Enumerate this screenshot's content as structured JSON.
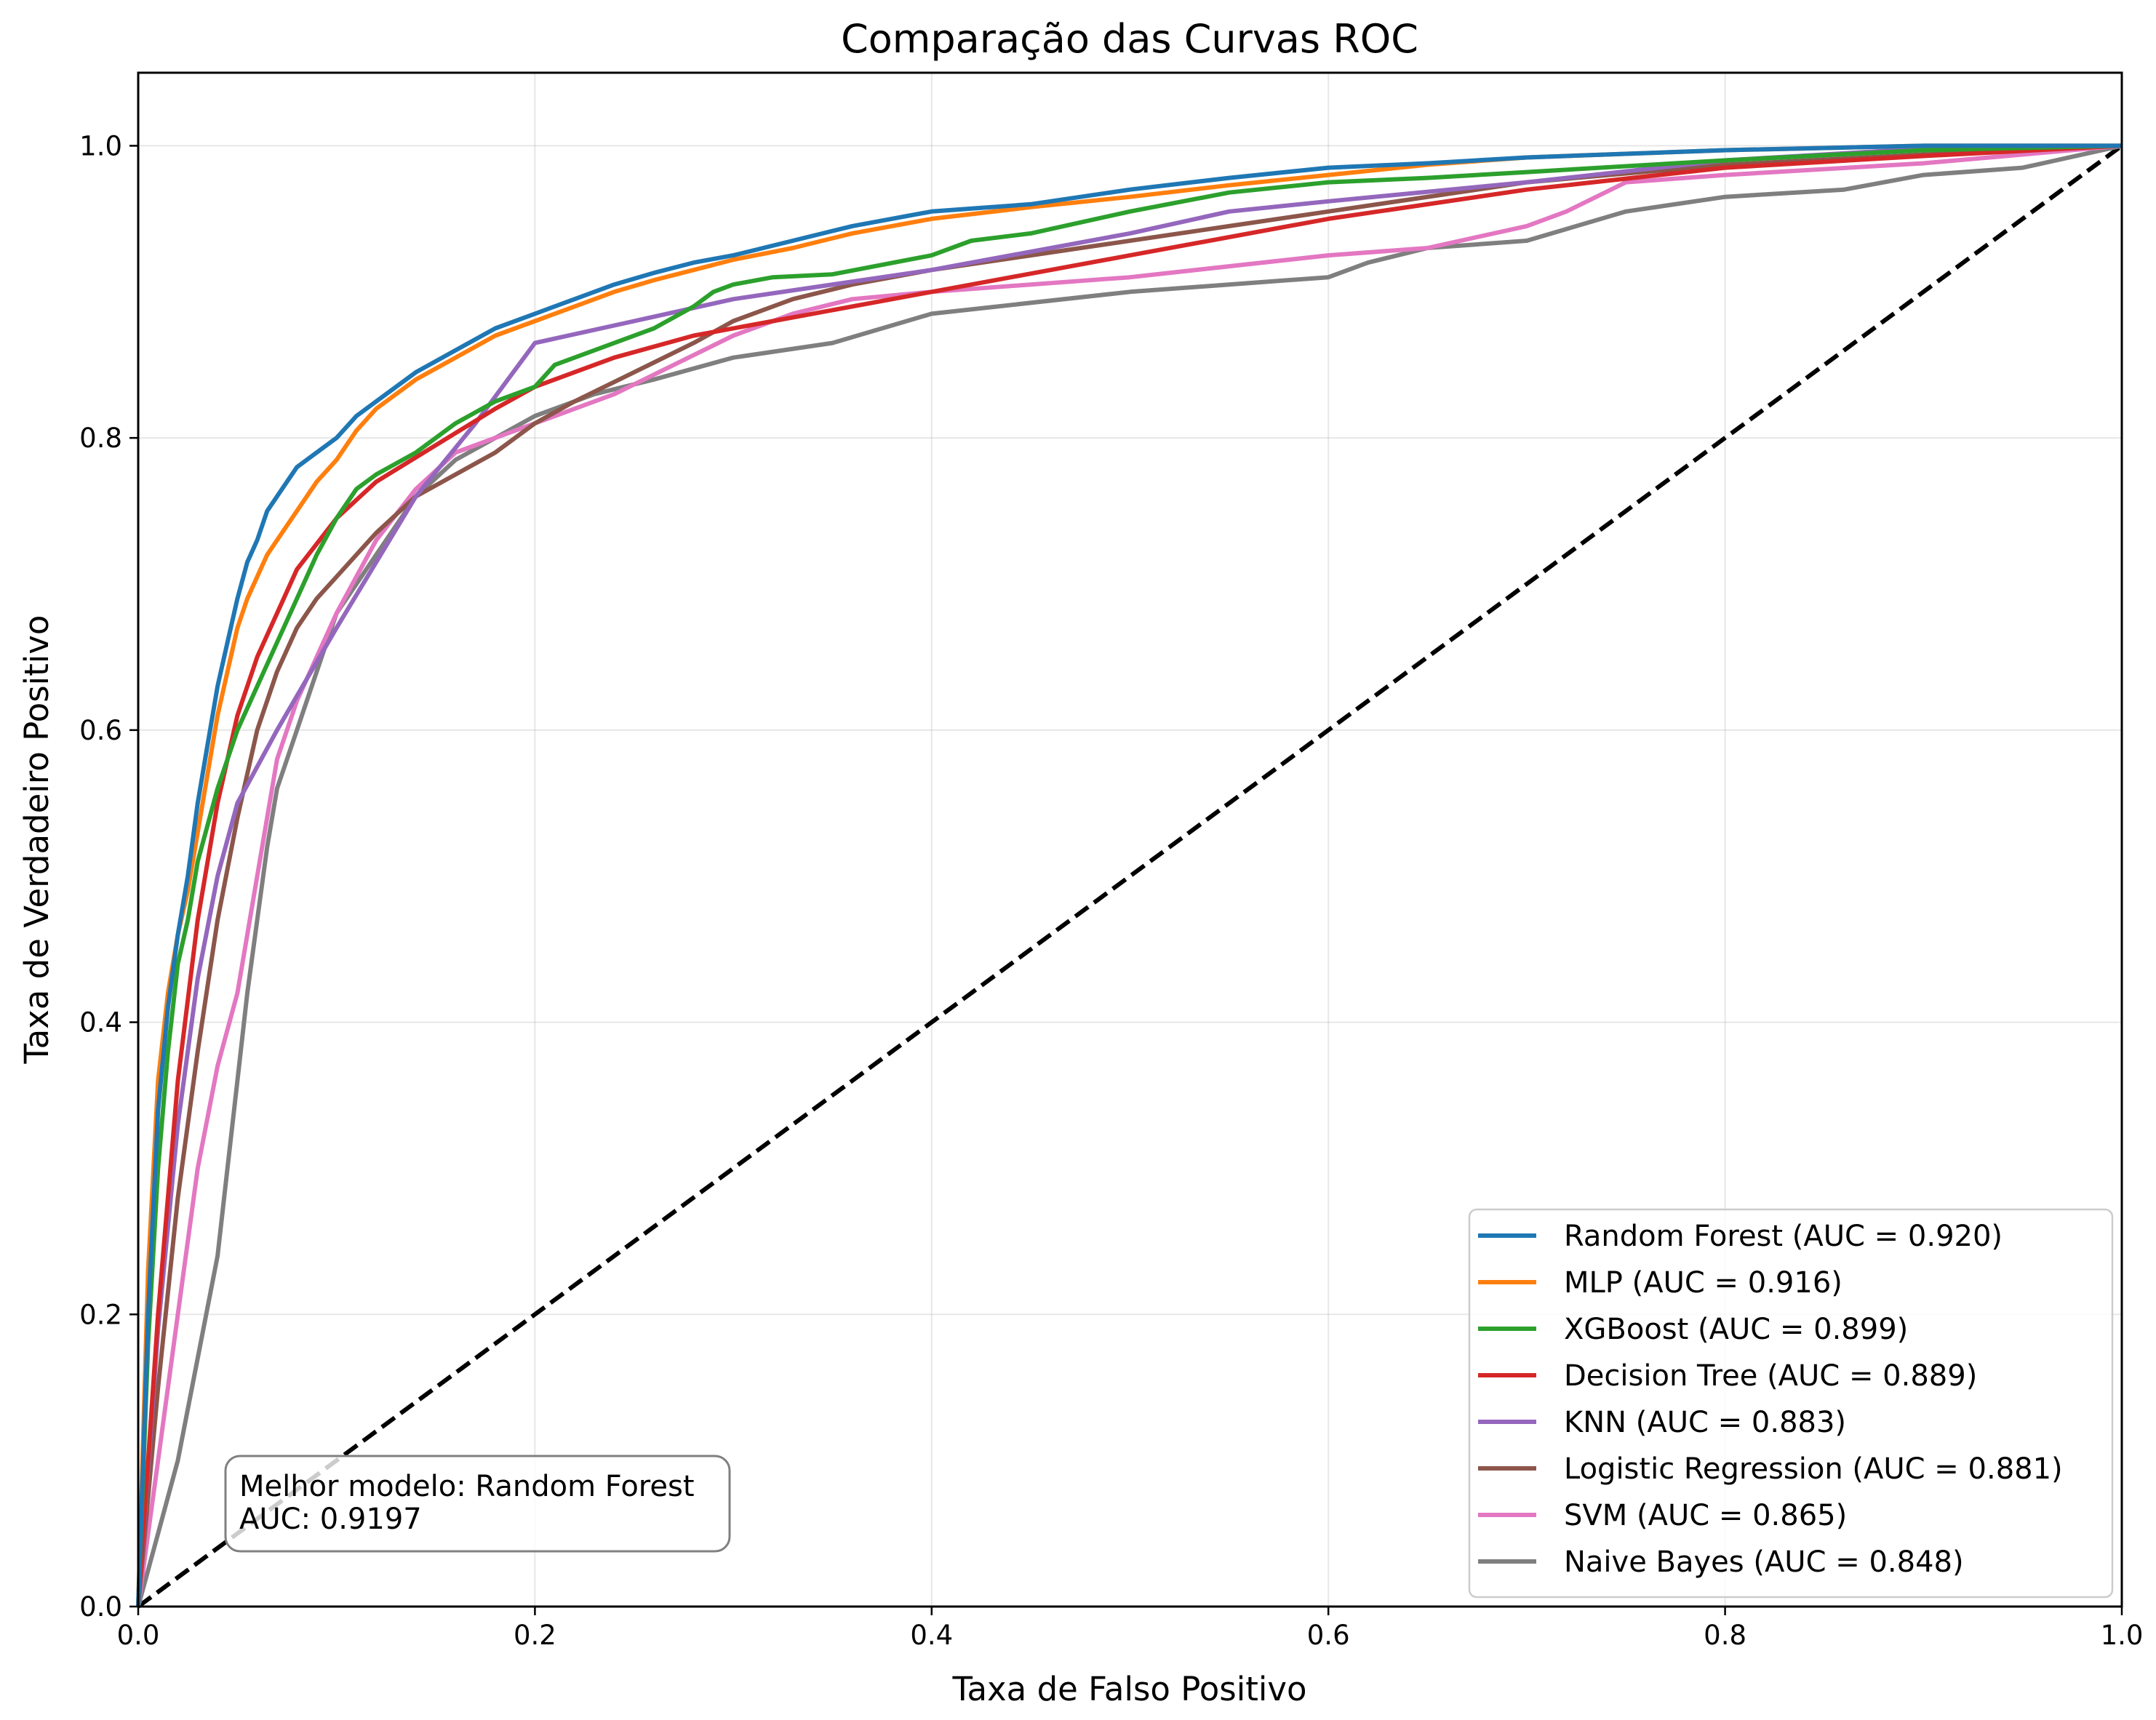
{
  "chart_data": {
    "type": "line",
    "title": "Comparação das Curvas ROC",
    "xlabel": "Taxa de Falso Positivo",
    "ylabel": "Taxa de Verdadeiro Positivo",
    "xlim": [
      0.0,
      1.0
    ],
    "ylim": [
      0.0,
      1.05
    ],
    "xticks": [
      "0.0",
      "0.2",
      "0.4",
      "0.6",
      "0.8",
      "1.0"
    ],
    "yticks": [
      "0.0",
      "0.2",
      "0.4",
      "0.6",
      "0.8",
      "1.0"
    ],
    "grid": true,
    "legend_position": "lower-right",
    "annotation": {
      "line1": "Melhor modelo: Random Forest",
      "line2": "AUC: 0.9197"
    },
    "diagonal": {
      "x": [
        0,
        1
      ],
      "y": [
        0,
        1
      ],
      "color": "#000000",
      "style": "dashed"
    },
    "series": [
      {
        "name": "Random Forest (AUC = 0.920)",
        "color": "#1f77b4",
        "x": [
          0,
          0.005,
          0.01,
          0.015,
          0.02,
          0.025,
          0.03,
          0.035,
          0.04,
          0.045,
          0.05,
          0.055,
          0.06,
          0.065,
          0.07,
          0.075,
          0.08,
          0.09,
          0.1,
          0.11,
          0.12,
          0.14,
          0.16,
          0.18,
          0.2,
          0.22,
          0.24,
          0.26,
          0.28,
          0.3,
          0.33,
          0.36,
          0.4,
          0.45,
          0.5,
          0.55,
          0.6,
          0.65,
          0.7,
          0.8,
          0.9,
          1.0
        ],
        "y": [
          0,
          0.2,
          0.34,
          0.41,
          0.46,
          0.5,
          0.55,
          0.59,
          0.63,
          0.66,
          0.69,
          0.715,
          0.73,
          0.75,
          0.76,
          0.77,
          0.78,
          0.79,
          0.8,
          0.815,
          0.825,
          0.845,
          0.86,
          0.875,
          0.885,
          0.895,
          0.905,
          0.913,
          0.92,
          0.925,
          0.935,
          0.945,
          0.955,
          0.96,
          0.97,
          0.978,
          0.985,
          0.988,
          0.992,
          0.997,
          1.0,
          1.0
        ]
      },
      {
        "name": "MLP (AUC = 0.916)",
        "color": "#ff7f0e",
        "x": [
          0,
          0.005,
          0.01,
          0.015,
          0.02,
          0.025,
          0.03,
          0.035,
          0.04,
          0.045,
          0.05,
          0.055,
          0.06,
          0.065,
          0.07,
          0.075,
          0.08,
          0.09,
          0.1,
          0.11,
          0.12,
          0.14,
          0.16,
          0.18,
          0.2,
          0.22,
          0.24,
          0.26,
          0.28,
          0.3,
          0.33,
          0.36,
          0.4,
          0.45,
          0.5,
          0.55,
          0.6,
          0.65,
          0.7,
          0.8,
          0.9,
          1.0
        ],
        "y": [
          0,
          0.23,
          0.36,
          0.42,
          0.46,
          0.49,
          0.53,
          0.57,
          0.61,
          0.64,
          0.67,
          0.69,
          0.705,
          0.72,
          0.73,
          0.74,
          0.75,
          0.77,
          0.785,
          0.805,
          0.82,
          0.84,
          0.855,
          0.87,
          0.88,
          0.89,
          0.9,
          0.908,
          0.915,
          0.922,
          0.93,
          0.94,
          0.95,
          0.958,
          0.965,
          0.973,
          0.98,
          0.987,
          0.992,
          0.997,
          1.0,
          1.0
        ]
      },
      {
        "name": "XGBoost (AUC = 0.899)",
        "color": "#2ca02c",
        "x": [
          0,
          0.005,
          0.01,
          0.015,
          0.02,
          0.025,
          0.03,
          0.04,
          0.05,
          0.06,
          0.07,
          0.08,
          0.09,
          0.1,
          0.11,
          0.12,
          0.14,
          0.16,
          0.18,
          0.2,
          0.21,
          0.22,
          0.24,
          0.26,
          0.28,
          0.29,
          0.3,
          0.32,
          0.35,
          0.4,
          0.42,
          0.45,
          0.5,
          0.55,
          0.6,
          0.65,
          0.7,
          0.8,
          0.9,
          1.0
        ],
        "y": [
          0,
          0.18,
          0.3,
          0.38,
          0.44,
          0.47,
          0.51,
          0.56,
          0.6,
          0.63,
          0.66,
          0.69,
          0.72,
          0.745,
          0.765,
          0.775,
          0.79,
          0.81,
          0.825,
          0.835,
          0.85,
          0.855,
          0.865,
          0.875,
          0.89,
          0.9,
          0.905,
          0.91,
          0.912,
          0.925,
          0.935,
          0.94,
          0.955,
          0.968,
          0.975,
          0.978,
          0.982,
          0.99,
          0.997,
          1.0
        ]
      },
      {
        "name": "Decision Tree (AUC = 0.889)",
        "color": "#d62728",
        "x": [
          0,
          0.01,
          0.02,
          0.03,
          0.04,
          0.05,
          0.06,
          0.07,
          0.08,
          0.1,
          0.12,
          0.15,
          0.18,
          0.2,
          0.24,
          0.28,
          0.32,
          0.4,
          0.5,
          0.6,
          0.7,
          0.8,
          0.9,
          1.0
        ],
        "y": [
          0,
          0.2,
          0.36,
          0.47,
          0.55,
          0.61,
          0.65,
          0.68,
          0.71,
          0.745,
          0.77,
          0.795,
          0.82,
          0.835,
          0.855,
          0.87,
          0.88,
          0.9,
          0.925,
          0.95,
          0.97,
          0.985,
          0.993,
          1.0
        ]
      },
      {
        "name": "KNN (AUC = 0.883)",
        "color": "#9467bd",
        "x": [
          0,
          0.01,
          0.02,
          0.03,
          0.04,
          0.05,
          0.07,
          0.1,
          0.14,
          0.17,
          0.2,
          0.25,
          0.3,
          0.4,
          0.5,
          0.55,
          0.6,
          0.7,
          0.8,
          0.9,
          1.0
        ],
        "y": [
          0,
          0.19,
          0.33,
          0.43,
          0.5,
          0.55,
          0.6,
          0.67,
          0.76,
          0.81,
          0.865,
          0.88,
          0.895,
          0.915,
          0.94,
          0.955,
          0.962,
          0.975,
          0.99,
          0.998,
          1.0
        ]
      },
      {
        "name": "Logistic Regression (AUC = 0.881)",
        "color": "#8c564b",
        "x": [
          0,
          0.01,
          0.02,
          0.03,
          0.04,
          0.05,
          0.06,
          0.07,
          0.08,
          0.09,
          0.1,
          0.12,
          0.14,
          0.16,
          0.18,
          0.2,
          0.22,
          0.25,
          0.28,
          0.3,
          0.33,
          0.36,
          0.4,
          0.45,
          0.5,
          0.55,
          0.6,
          0.7,
          0.8,
          0.9,
          1.0
        ],
        "y": [
          0,
          0.15,
          0.28,
          0.38,
          0.47,
          0.54,
          0.6,
          0.64,
          0.67,
          0.69,
          0.705,
          0.735,
          0.76,
          0.775,
          0.79,
          0.81,
          0.825,
          0.845,
          0.865,
          0.88,
          0.895,
          0.905,
          0.915,
          0.925,
          0.935,
          0.945,
          0.955,
          0.975,
          0.987,
          0.994,
          1.0
        ]
      },
      {
        "name": "SVM (AUC = 0.865)",
        "color": "#e377c2",
        "x": [
          0,
          0.01,
          0.02,
          0.03,
          0.04,
          0.05,
          0.06,
          0.07,
          0.08,
          0.09,
          0.1,
          0.12,
          0.14,
          0.16,
          0.18,
          0.2,
          0.24,
          0.27,
          0.3,
          0.33,
          0.36,
          0.4,
          0.5,
          0.6,
          0.65,
          0.7,
          0.72,
          0.75,
          0.8,
          0.9,
          1.0
        ],
        "y": [
          0,
          0.1,
          0.2,
          0.3,
          0.37,
          0.42,
          0.5,
          0.58,
          0.62,
          0.65,
          0.68,
          0.73,
          0.765,
          0.79,
          0.8,
          0.81,
          0.83,
          0.85,
          0.87,
          0.885,
          0.895,
          0.9,
          0.91,
          0.925,
          0.93,
          0.945,
          0.955,
          0.975,
          0.98,
          0.988,
          1.0
        ]
      },
      {
        "name": "Naive Bayes (AUC = 0.848)",
        "color": "#7f7f7f",
        "x": [
          0,
          0.01,
          0.02,
          0.03,
          0.04,
          0.045,
          0.05,
          0.055,
          0.06,
          0.065,
          0.07,
          0.08,
          0.09,
          0.1,
          0.12,
          0.14,
          0.16,
          0.18,
          0.2,
          0.23,
          0.26,
          0.3,
          0.35,
          0.4,
          0.5,
          0.55,
          0.6,
          0.62,
          0.65,
          0.7,
          0.75,
          0.8,
          0.86,
          0.9,
          0.95,
          1.0
        ],
        "y": [
          0,
          0.05,
          0.1,
          0.17,
          0.24,
          0.3,
          0.36,
          0.42,
          0.47,
          0.52,
          0.56,
          0.6,
          0.64,
          0.68,
          0.72,
          0.76,
          0.785,
          0.8,
          0.815,
          0.83,
          0.84,
          0.855,
          0.865,
          0.885,
          0.9,
          0.905,
          0.91,
          0.92,
          0.93,
          0.935,
          0.955,
          0.965,
          0.97,
          0.98,
          0.985,
          1.0
        ]
      }
    ]
  }
}
